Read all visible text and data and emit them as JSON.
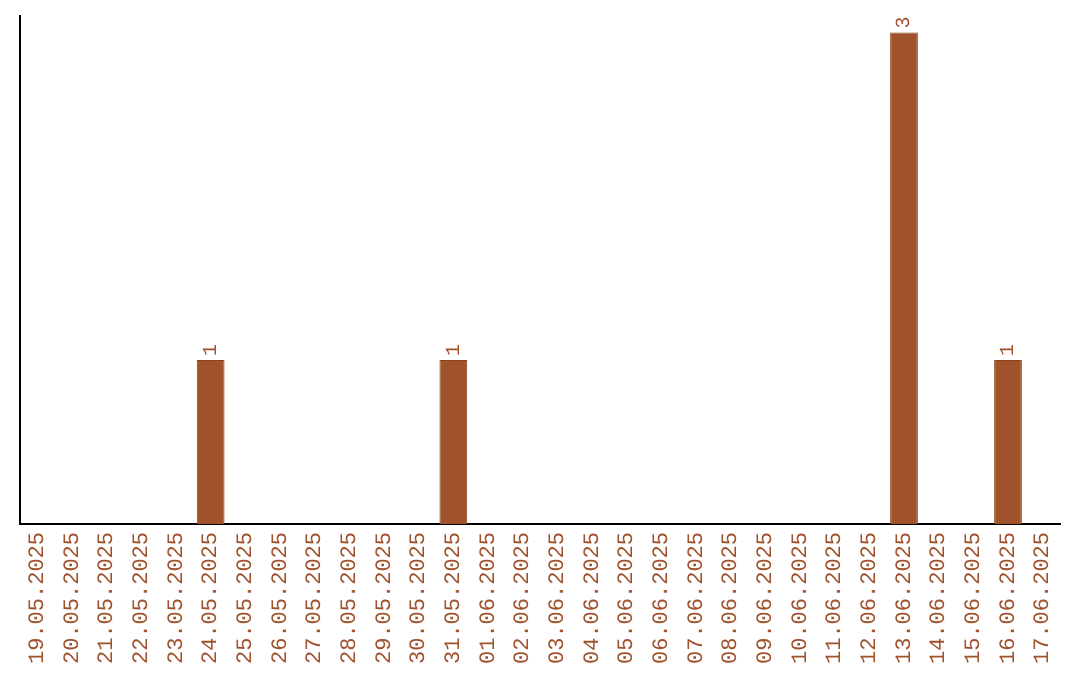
{
  "chart_data": {
    "type": "bar",
    "categories": [
      "19.05.2025",
      "20.05.2025",
      "21.05.2025",
      "22.05.2025",
      "23.05.2025",
      "24.05.2025",
      "25.05.2025",
      "26.05.2025",
      "27.05.2025",
      "28.05.2025",
      "29.05.2025",
      "30.05.2025",
      "31.05.2025",
      "01.06.2025",
      "02.06.2025",
      "03.06.2025",
      "04.06.2025",
      "05.06.2025",
      "06.06.2025",
      "07.06.2025",
      "08.06.2025",
      "09.06.2025",
      "10.06.2025",
      "11.06.2025",
      "12.06.2025",
      "13.06.2025",
      "14.06.2025",
      "15.06.2025",
      "16.06.2025",
      "17.06.2025"
    ],
    "values": [
      0,
      0,
      0,
      0,
      0,
      1,
      0,
      0,
      0,
      0,
      0,
      0,
      1,
      0,
      0,
      0,
      0,
      0,
      0,
      0,
      0,
      0,
      0,
      0,
      0,
      3,
      0,
      0,
      1,
      0
    ],
    "value_labels": [
      null,
      null,
      null,
      null,
      null,
      "1",
      null,
      null,
      null,
      null,
      null,
      null,
      "1",
      null,
      null,
      null,
      null,
      null,
      null,
      null,
      null,
      null,
      null,
      null,
      null,
      "3",
      null,
      null,
      "1",
      null
    ],
    "color": "#a0522d",
    "ylim": [
      0,
      3.1
    ],
    "tick_labels": "x",
    "grid": false,
    "legend": false
  }
}
